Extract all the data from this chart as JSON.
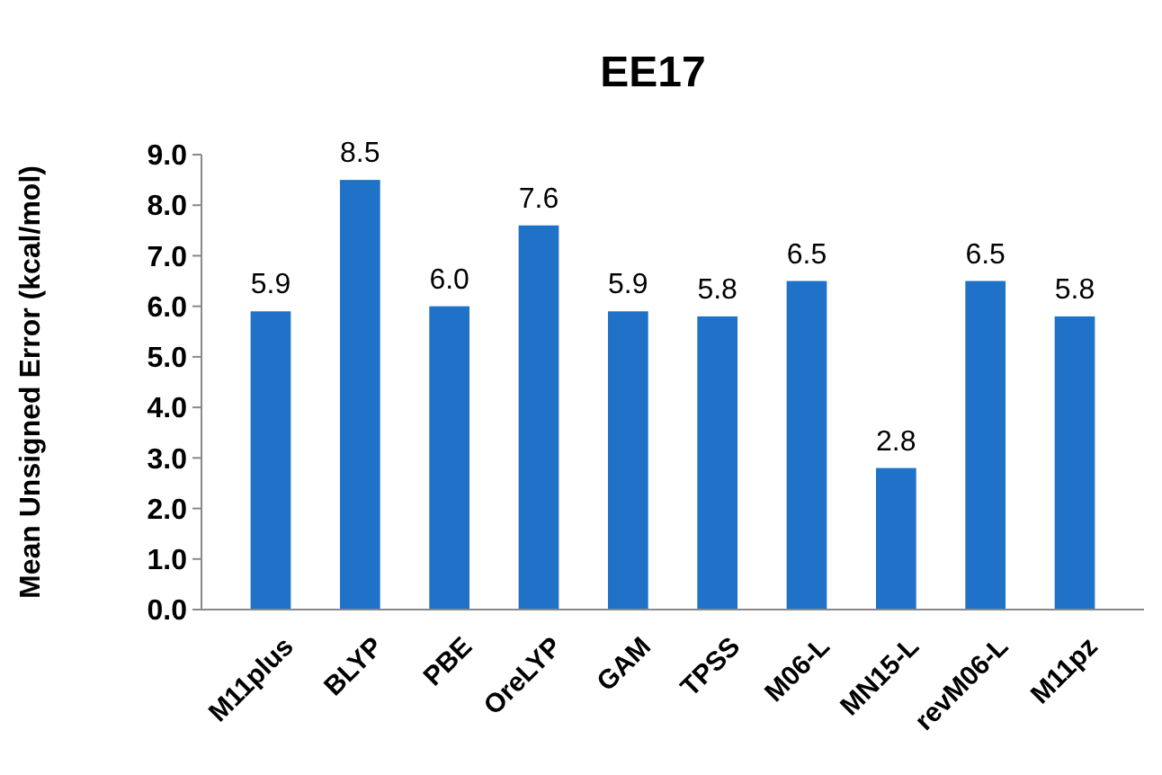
{
  "chart_data": {
    "type": "bar",
    "title": "EE17",
    "ylabel": "Mean Unsigned Error (kcal/mol)",
    "categories": [
      "M11plus",
      "BLYP",
      "PBE",
      "OreLYP",
      "GAM",
      "TPSS",
      "M06-L",
      "MN15-L",
      "revM06-L",
      "M11pz"
    ],
    "values": [
      5.9,
      8.5,
      6.0,
      7.6,
      5.9,
      5.8,
      6.5,
      2.8,
      6.5,
      5.8
    ],
    "value_labels": [
      "5.9",
      "8.5",
      "6.0",
      "7.6",
      "5.9",
      "5.8",
      "6.5",
      "2.8",
      "6.5",
      "5.8"
    ],
    "color": "#1f72c8",
    "ylim": [
      0,
      9
    ],
    "yticks": [
      {
        "value": 0,
        "label": "0.0"
      },
      {
        "value": 1,
        "label": "1.0"
      },
      {
        "value": 2,
        "label": "2.0"
      },
      {
        "value": 3,
        "label": "3.0"
      },
      {
        "value": 4,
        "label": "4.0"
      },
      {
        "value": 5,
        "label": "5.0"
      },
      {
        "value": 6,
        "label": "6.0"
      },
      {
        "value": 7,
        "label": "7.0"
      },
      {
        "value": 8,
        "label": "8.0"
      },
      {
        "value": 9,
        "label": "9.0"
      }
    ],
    "grid": false
  }
}
